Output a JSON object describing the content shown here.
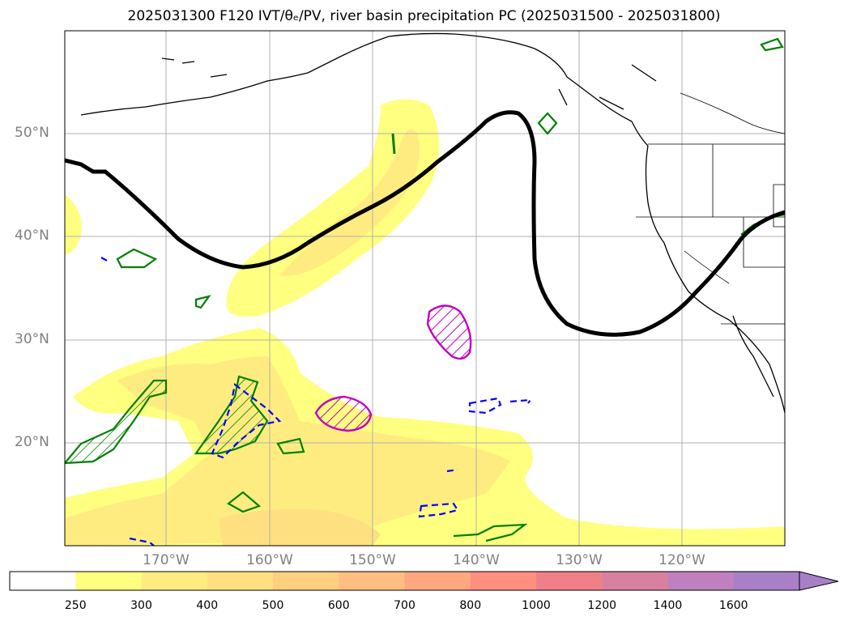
{
  "title": "2025031300 F120 IVT/θₑ/PV, river basin precipitation PC (2025031500 - 2025031800)",
  "map": {
    "lat_labels": [
      {
        "text": "50°N",
        "lat": 50
      },
      {
        "text": "40°N",
        "lat": 40
      },
      {
        "text": "30°N",
        "lat": 30
      },
      {
        "text": "20°N",
        "lat": 20
      }
    ],
    "lon_labels": [
      {
        "text": "170°W",
        "lon": -170
      },
      {
        "text": "160°W",
        "lon": -160
      },
      {
        "text": "150°W",
        "lon": -150
      },
      {
        "text": "140°W",
        "lon": -140
      },
      {
        "text": "130°W",
        "lon": -130
      },
      {
        "text": "120°W",
        "lon": -120
      }
    ]
  },
  "colorbar": {
    "levels": [
      "250",
      "300",
      "400",
      "500",
      "600",
      "700",
      "800",
      "1000",
      "1200",
      "1400",
      "1600"
    ],
    "colors": [
      "#ffffff",
      "#ffff80",
      "#ffec80",
      "#ffe080",
      "#ffd080",
      "#ffbf80",
      "#ffa880",
      "#ff9080",
      "#f08088",
      "#d880a0",
      "#c080c0",
      "#a880c8"
    ]
  },
  "colors": {
    "ivt_fill_1": "#ffff80",
    "ivt_fill_2": "#ffec80",
    "ivt_fill_3": "#ffe080",
    "pv_contour": "#000000",
    "theta_contour": "#008000",
    "neg_contour": "#0000ff",
    "precip_pc": "#c000c0"
  }
}
